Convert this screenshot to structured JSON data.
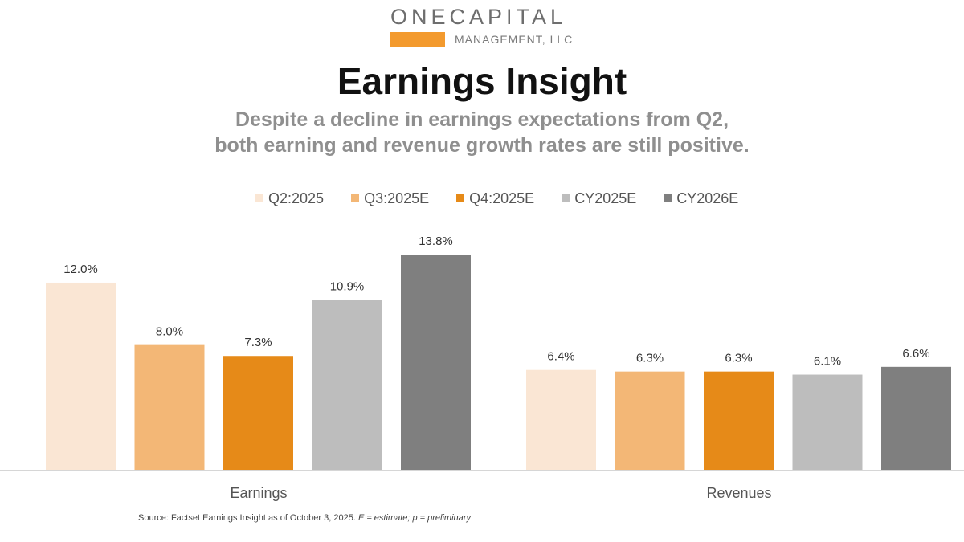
{
  "logo": {
    "top_text": "ONECAPITAL",
    "bottom_text": "MANAGEMENT, LLC",
    "bar_color": "#f39a2e"
  },
  "title": "Earnings Insight",
  "subtitle_lines": [
    "Despite a decline in earnings expectations from Q2,",
    "both earning and revenue growth rates are still positive."
  ],
  "source": {
    "text": "Source: Factset Earnings Insight as of October 3, 2025.",
    "note": "E = estimate; p = preliminary"
  },
  "chart_data": {
    "type": "bar",
    "title": "",
    "xlabel": "",
    "ylabel": "",
    "grid": false,
    "legend": "top-center",
    "ylim": [
      0,
      14.5
    ],
    "categories": [
      "Earnings",
      "Revenues"
    ],
    "series": [
      {
        "name": "Q2:2025",
        "color": "#fae6d4",
        "values": [
          12.0,
          6.4
        ],
        "labels": [
          "12.0%",
          "6.4%"
        ]
      },
      {
        "name": "Q3:2025E",
        "color": "#f3b776",
        "values": [
          8.0,
          6.3
        ],
        "labels": [
          "8.0%",
          "6.3%"
        ]
      },
      {
        "name": "Q4:2025E",
        "color": "#e68a18",
        "values": [
          7.3,
          6.3
        ],
        "labels": [
          "7.3%",
          "6.3%"
        ]
      },
      {
        "name": "CY2025E",
        "color": "#bdbdbd",
        "values": [
          10.9,
          6.1
        ],
        "labels": [
          "10.9%",
          "6.1%"
        ]
      },
      {
        "name": "CY2026E",
        "color": "#7f7f7f",
        "values": [
          13.8,
          6.6
        ],
        "labels": [
          "13.8%",
          "6.6%"
        ]
      }
    ]
  }
}
